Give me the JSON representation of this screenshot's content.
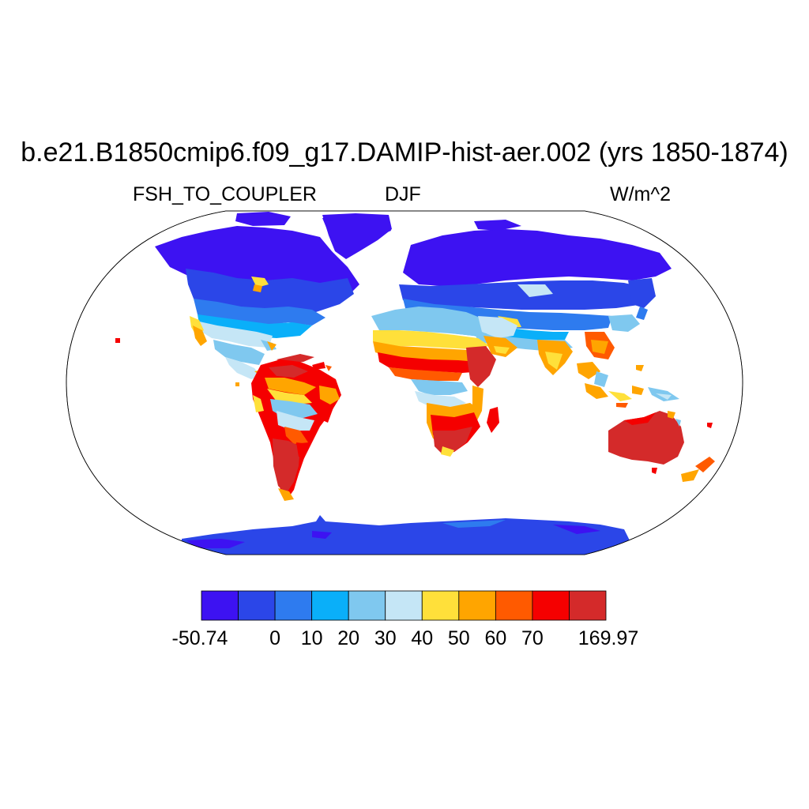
{
  "title": "b.e21.B1850cmip6.f09_g17.DAMIP-hist-aer.002 (yrs 1850-1874)",
  "left_string": "FSH_TO_COUPLER",
  "center_string": "DJF",
  "right_string": "W/m^2",
  "colors": {
    "ocean": "#ffffff",
    "outline": "#000000",
    "levels": [
      "#3d12f2",
      "#2b46e8",
      "#2e7bef",
      "#0aaff9",
      "#7fc8ef",
      "#c5e6f6",
      "#ffe03a",
      "#ffa500",
      "#ff5a00",
      "#f50000",
      "#d42a2a"
    ]
  },
  "colorbar": {
    "labels": [
      "-50.74",
      "0",
      "10",
      "20",
      "30",
      "40",
      "50",
      "60",
      "70",
      "169.97"
    ]
  }
}
